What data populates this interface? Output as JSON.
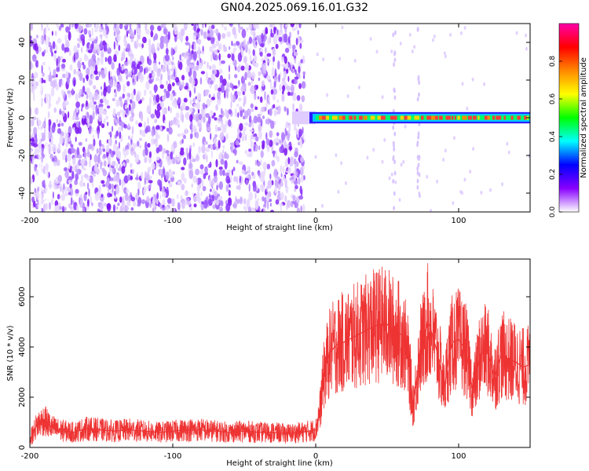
{
  "title": "GN04.2025.069.16.01.G32",
  "chart_data": [
    {
      "type": "heatmap",
      "title": "GN04.2025.069.16.01.G32",
      "xlabel": "Height of straight line (km)",
      "ylabel": "Frequency (Hz)",
      "xlim": [
        -200,
        150
      ],
      "ylim": [
        -50,
        50
      ],
      "xticks": [
        -200,
        -100,
        0,
        100
      ],
      "yticks": [
        -40,
        -20,
        0,
        20,
        40
      ],
      "colorbar": {
        "label": "Normalized spectral amplitude",
        "range": [
          0,
          1
        ],
        "ticks": [
          0.0,
          0.2,
          0.4,
          0.6,
          0.8
        ],
        "colors": [
          "#ffffff",
          "#8800ff",
          "#0000ff",
          "#00ffff",
          "#00ff00",
          "#ffff00",
          "#ff8800",
          "#ff0000",
          "#ff00aa"
        ]
      },
      "features": {
        "noise_region_x": [
          -200,
          -8
        ],
        "signal_band_x": [
          0,
          150
        ],
        "signal_band_frequency_hz": 0,
        "signal_band_half_width_hz": 3
      }
    },
    {
      "type": "line",
      "xlabel": "Height of straight line (km)",
      "ylabel": "SNR (10 * v/v)",
      "xlim": [
        -200,
        150
      ],
      "ylim": [
        0,
        7500
      ],
      "xticks": [
        -200,
        -100,
        0,
        100
      ],
      "yticks": [
        0,
        2000,
        4000,
        6000
      ],
      "grid": false,
      "series": [
        {
          "color": "#ee3333",
          "x": [
            -200,
            -195,
            -190,
            -185,
            -180,
            -175,
            -170,
            -160,
            -150,
            -140,
            -130,
            -120,
            -110,
            -100,
            -90,
            -80,
            -70,
            -60,
            -50,
            -40,
            -30,
            -20,
            -10,
            -5,
            0,
            3,
            6,
            10,
            15,
            20,
            30,
            40,
            45,
            50,
            55,
            60,
            62,
            65,
            68,
            70,
            73,
            76,
            78,
            80,
            82,
            85,
            88,
            90,
            93,
            96,
            100,
            105,
            110,
            115,
            120,
            125,
            130,
            135,
            140,
            145,
            150
          ],
          "values": [
            300,
            900,
            1100,
            800,
            700,
            650,
            600,
            750,
            700,
            650,
            700,
            650,
            600,
            650,
            700,
            700,
            650,
            600,
            650,
            600,
            600,
            550,
            600,
            650,
            700,
            1500,
            3000,
            3800,
            4100,
            4200,
            4500,
            4800,
            4900,
            4900,
            4600,
            4500,
            4200,
            3400,
            1700,
            2400,
            3900,
            4300,
            5000,
            4800,
            4400,
            3800,
            3000,
            2300,
            3600,
            4200,
            4300,
            3900,
            2200,
            3700,
            3900,
            2800,
            3700,
            3500,
            3400,
            3200,
            3300
          ]
        }
      ]
    }
  ]
}
